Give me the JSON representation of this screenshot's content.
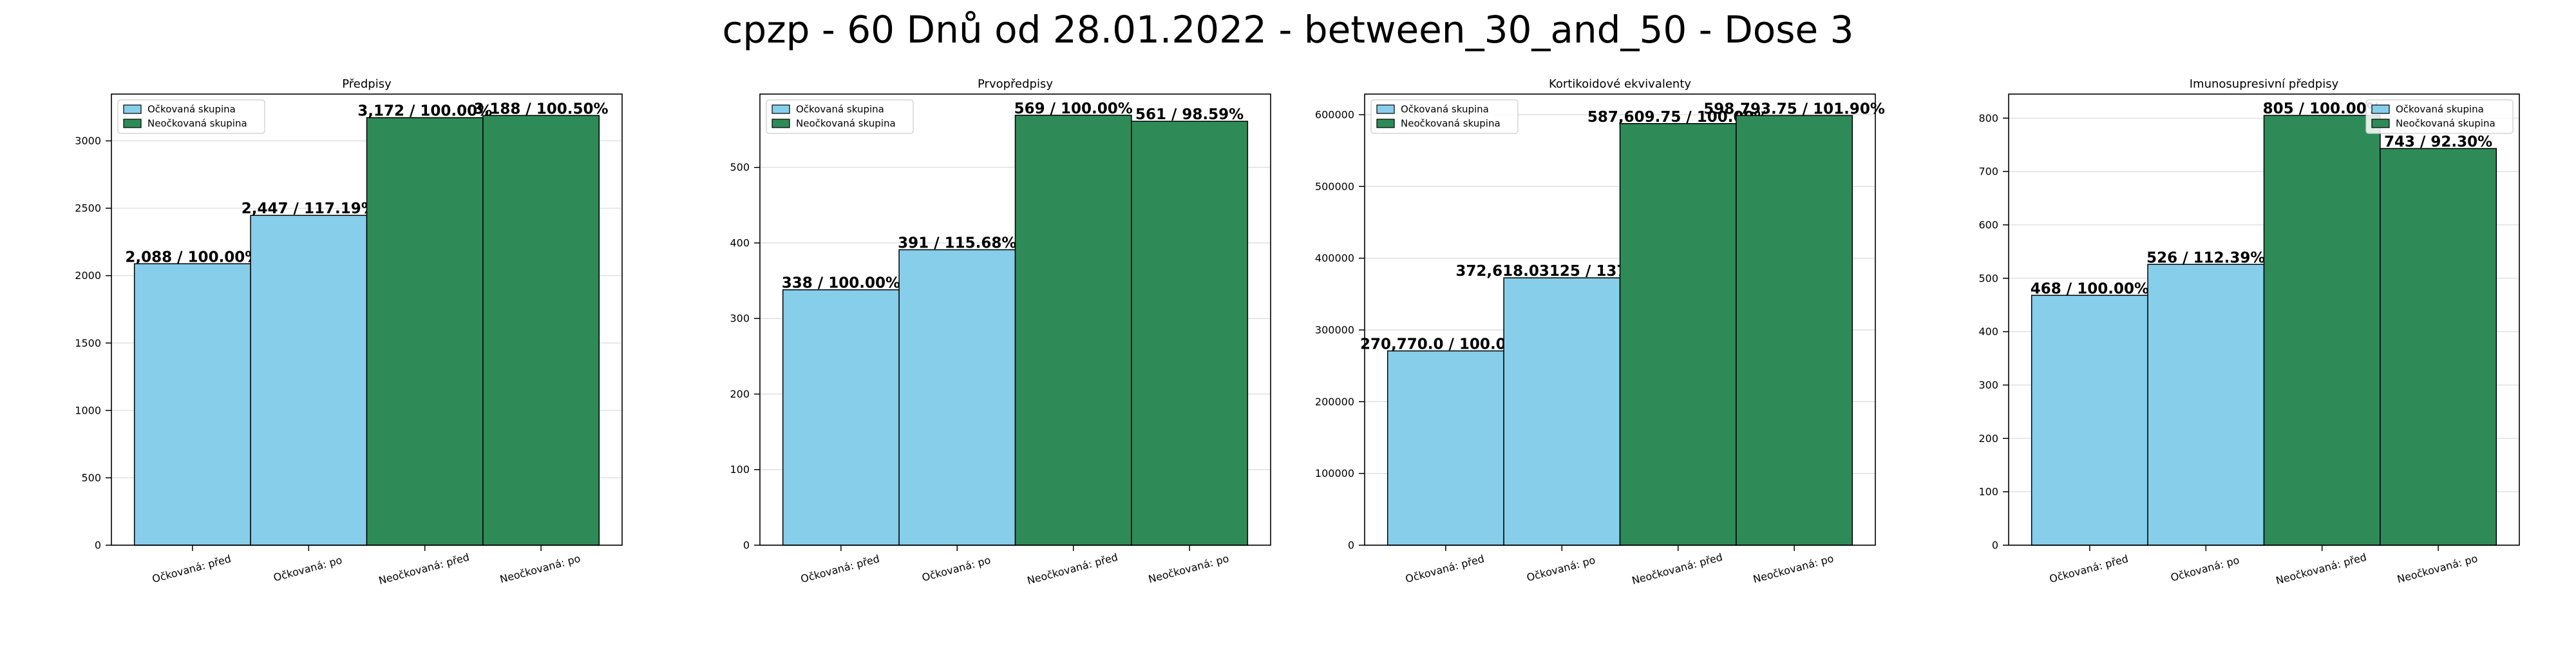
{
  "suptitle": "cpzp - 60 Dnů od 28.01.2022 - between_30_and_50 - Dose 3",
  "colors": {
    "vaccinated": "#87CEEB",
    "unvaccinated": "#2E8B57"
  },
  "legend_labels": [
    "Očkovaná skupina",
    "Neočkovaná skupina"
  ],
  "chart_data": [
    {
      "type": "bar",
      "title": "Předpisy",
      "categories": [
        "Očkovaná: před",
        "Očkovaná: po",
        "Neočkovaná: před",
        "Neočkovaná: po"
      ],
      "values": [
        2088,
        2447,
        3172,
        3188
      ],
      "bar_labels": [
        "2,088 / 100.00%",
        "2,447 / 117.19%",
        "3,172 / 100.00%",
        "3,188 / 100.50%"
      ],
      "yticks": [
        0,
        500,
        1000,
        1500,
        2000,
        2500,
        3000
      ],
      "ylim": [
        0,
        3347
      ],
      "legend": "top-left",
      "grid": true
    },
    {
      "type": "bar",
      "title": "Prvopředpisy",
      "categories": [
        "Očkovaná: před",
        "Očkovaná: po",
        "Neočkovaná: před",
        "Neočkovaná: po"
      ],
      "values": [
        338,
        391,
        569,
        561
      ],
      "bar_labels": [
        "338 / 100.00%",
        "391 / 115.68%",
        "569 / 100.00%",
        "561 / 98.59%"
      ],
      "yticks": [
        0,
        100,
        200,
        300,
        400,
        500
      ],
      "ylim": [
        0,
        597
      ],
      "legend": "top-left",
      "grid": true
    },
    {
      "type": "bar",
      "title": "Kortikoidové ekvivalenty",
      "categories": [
        "Očkovaná: před",
        "Očkovaná: po",
        "Neočkovaná: před",
        "Neočkovaná: po"
      ],
      "values": [
        270770.0,
        372618.03125,
        587609.75,
        598793.75
      ],
      "bar_labels": [
        "270,770.0 / 100.00%",
        "372,618.03125 / 137.61%",
        "587,609.75 / 100.00%",
        "598,793.75 / 101.90%"
      ],
      "yticks": [
        0,
        100000,
        200000,
        300000,
        400000,
        500000,
        600000
      ],
      "ylim": [
        0,
        628733
      ],
      "legend": "top-left",
      "grid": true
    },
    {
      "type": "bar",
      "title": "Imunosupresivní předpisy",
      "categories": [
        "Očkovaná: před",
        "Očkovaná: po",
        "Neočkovaná: před",
        "Neočkovaná: po"
      ],
      "values": [
        468,
        526,
        805,
        743
      ],
      "bar_labels": [
        "468 / 100.00%",
        "526 / 112.39%",
        "805 / 100.00%",
        "743 / 92.30%"
      ],
      "yticks": [
        0,
        100,
        200,
        300,
        400,
        500,
        600,
        700,
        800
      ],
      "ylim": [
        0,
        845
      ],
      "legend": "top-right",
      "grid": true
    }
  ]
}
